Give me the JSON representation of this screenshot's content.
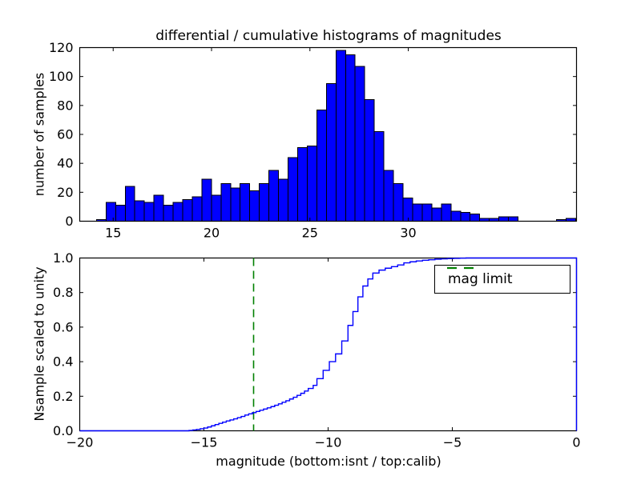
{
  "figure": {
    "colors": {
      "background": "#ffffff",
      "axes": "#000000",
      "hist_fill": "#0000ff",
      "hist_edge": "#000000",
      "curve": "#0000ff",
      "mag_limit_line": "#008000",
      "text": "#000000"
    }
  },
  "chart_data": [
    {
      "type": "bar",
      "subplot": "top",
      "title": "differential / cumulative histograms of magnitudes",
      "ylabel": "number of samples",
      "xlim": [
        13.3,
        38.55
      ],
      "ylim": [
        0,
        120
      ],
      "x_tick_labels": [
        "15",
        "20",
        "25",
        "30"
      ],
      "y_tick_labels": [
        "0",
        "20",
        "40",
        "60",
        "80",
        "100",
        "120"
      ],
      "grid": false,
      "bin_start": 14.15,
      "bin_width": 0.487,
      "counts": [
        1,
        13,
        11,
        24,
        14,
        13,
        18,
        11,
        13,
        15,
        17,
        29,
        18,
        26,
        23,
        26,
        21,
        26,
        35,
        29,
        44,
        51,
        52,
        77,
        95,
        118,
        115,
        107,
        84,
        62,
        35,
        26,
        16,
        12,
        12,
        9,
        12,
        7,
        6,
        5,
        2,
        2,
        3,
        3,
        0,
        0,
        0,
        0,
        1,
        2
      ]
    },
    {
      "type": "line",
      "subplot": "bottom",
      "line_style": "step",
      "ylabel": "Nsample scaled to unity",
      "xlabel": "magnitude (bottom:isnt / top:calib)",
      "xlim": [
        -20,
        0
      ],
      "ylim": [
        0.0,
        1.0
      ],
      "x_tick_labels": [
        "−20",
        "−15",
        "−10",
        "−5",
        "0"
      ],
      "y_tick_labels": [
        "0.0",
        "0.2",
        "0.4",
        "0.6",
        "0.8",
        "1.0"
      ],
      "grid": false,
      "points": [
        [
          -20,
          0
        ],
        [
          -15.6,
          0.002
        ],
        [
          -15.45,
          0.005
        ],
        [
          -15.3,
          0.008
        ],
        [
          -15.15,
          0.012
        ],
        [
          -15,
          0.016
        ],
        [
          -14.85,
          0.022
        ],
        [
          -14.7,
          0.029
        ],
        [
          -14.55,
          0.036
        ],
        [
          -14.4,
          0.043
        ],
        [
          -14.25,
          0.05
        ],
        [
          -14.1,
          0.057
        ],
        [
          -13.95,
          0.063
        ],
        [
          -13.8,
          0.069
        ],
        [
          -13.65,
          0.076
        ],
        [
          -13.5,
          0.083
        ],
        [
          -13.35,
          0.091
        ],
        [
          -13.2,
          0.098
        ],
        [
          -13.05,
          0.105
        ],
        [
          -12.9,
          0.112
        ],
        [
          -12.75,
          0.119
        ],
        [
          -12.6,
          0.126
        ],
        [
          -12.45,
          0.133
        ],
        [
          -12.3,
          0.14
        ],
        [
          -12.15,
          0.148
        ],
        [
          -12,
          0.156
        ],
        [
          -11.85,
          0.165
        ],
        [
          -11.7,
          0.174
        ],
        [
          -11.55,
          0.184
        ],
        [
          -11.4,
          0.194
        ],
        [
          -11.25,
          0.205
        ],
        [
          -11.1,
          0.217
        ],
        [
          -10.95,
          0.23
        ],
        [
          -10.8,
          0.245
        ],
        [
          -10.6,
          0.263
        ],
        [
          -10.45,
          0.302
        ],
        [
          -10.2,
          0.35
        ],
        [
          -9.95,
          0.4
        ],
        [
          -9.7,
          0.445
        ],
        [
          -9.45,
          0.52
        ],
        [
          -9.2,
          0.61
        ],
        [
          -9,
          0.69
        ],
        [
          -8.8,
          0.775
        ],
        [
          -8.6,
          0.838
        ],
        [
          -8.4,
          0.879
        ],
        [
          -8.2,
          0.913
        ],
        [
          -7.95,
          0.93
        ],
        [
          -7.7,
          0.941
        ],
        [
          -7.45,
          0.95
        ],
        [
          -7.2,
          0.96
        ],
        [
          -6.95,
          0.972
        ],
        [
          -6.7,
          0.978
        ],
        [
          -6.45,
          0.983
        ],
        [
          -6.2,
          0.987
        ],
        [
          -5.95,
          0.99
        ],
        [
          -5.7,
          0.993
        ],
        [
          -5.45,
          0.995
        ],
        [
          -5.2,
          0.997
        ],
        [
          -4.95,
          0.998
        ],
        [
          -4.7,
          0.999
        ],
        [
          -4.45,
          1.0
        ]
      ],
      "vline": {
        "x": -13,
        "style": "dashed",
        "color": "#008000",
        "label": "mag limit"
      },
      "legend_position": "upper right"
    }
  ]
}
